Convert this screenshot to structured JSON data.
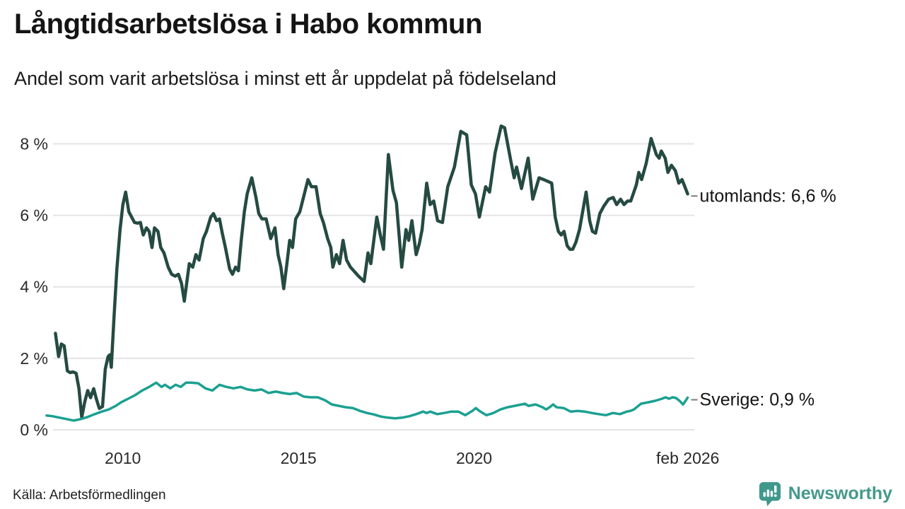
{
  "header": {
    "title": "Långtidsarbetslösa i Habo kommun",
    "subtitle": "Andel som varit arbetslösa i minst ett år uppdelat på födelseland"
  },
  "footer": {
    "source": "Källa: Arbetsförmedlingen",
    "brand": "Newsworthy"
  },
  "colors": {
    "utomlands_line": "#254a42",
    "sverige_line": "#1ba091",
    "grid": "#e4e4e8",
    "axis_text": "#2a2a2a",
    "connector": "#7a7a7a",
    "brand_teal": "#44998c"
  },
  "chart_data": {
    "type": "line",
    "title": "Långtidsarbetslösa i Habo kommun",
    "subtitle": "Andel som varit arbetslösa i minst ett år uppdelat på födelseland",
    "unit": "%",
    "grid": true,
    "legend_position": "right-end-labels",
    "xlim": [
      2007.75,
      2026.25
    ],
    "ylim": [
      0,
      8.8
    ],
    "y_ticks": [
      {
        "label": "0 %",
        "value": 0
      },
      {
        "label": "2 %",
        "value": 2
      },
      {
        "label": "4 %",
        "value": 4
      },
      {
        "label": "6 %",
        "value": 6
      },
      {
        "label": "8 %",
        "value": 8
      }
    ],
    "x_ticks": [
      {
        "label": "2010",
        "x": 2010
      },
      {
        "label": "2015",
        "x": 2015
      },
      {
        "label": "2020",
        "x": 2020
      },
      {
        "label": "feb 2026",
        "x": 2026.083
      }
    ],
    "series": [
      {
        "name": "utomlands",
        "label": "utomlands: 6,6 %",
        "last_value": 6.6,
        "color": "#254a42",
        "points": [
          [
            2008.08,
            2.7
          ],
          [
            2008.17,
            2.05
          ],
          [
            2008.25,
            2.4
          ],
          [
            2008.33,
            2.35
          ],
          [
            2008.42,
            1.65
          ],
          [
            2008.5,
            1.6
          ],
          [
            2008.58,
            1.62
          ],
          [
            2008.67,
            1.58
          ],
          [
            2008.75,
            1.15
          ],
          [
            2008.83,
            0.35
          ],
          [
            2008.92,
            0.8
          ],
          [
            2009.0,
            1.1
          ],
          [
            2009.08,
            0.9
          ],
          [
            2009.17,
            1.15
          ],
          [
            2009.25,
            0.85
          ],
          [
            2009.33,
            0.6
          ],
          [
            2009.42,
            0.65
          ],
          [
            2009.5,
            1.7
          ],
          [
            2009.58,
            2.05
          ],
          [
            2009.63,
            2.1
          ],
          [
            2009.67,
            1.75
          ],
          [
            2009.75,
            3.2
          ],
          [
            2009.83,
            4.5
          ],
          [
            2009.92,
            5.6
          ],
          [
            2010.0,
            6.3
          ],
          [
            2010.08,
            6.65
          ],
          [
            2010.17,
            6.1
          ],
          [
            2010.25,
            5.95
          ],
          [
            2010.33,
            5.8
          ],
          [
            2010.42,
            5.78
          ],
          [
            2010.5,
            5.8
          ],
          [
            2010.58,
            5.45
          ],
          [
            2010.67,
            5.65
          ],
          [
            2010.75,
            5.55
          ],
          [
            2010.83,
            5.1
          ],
          [
            2010.9,
            5.65
          ],
          [
            2011.0,
            5.55
          ],
          [
            2011.08,
            5.1
          ],
          [
            2011.17,
            4.95
          ],
          [
            2011.29,
            4.55
          ],
          [
            2011.39,
            4.35
          ],
          [
            2011.49,
            4.3
          ],
          [
            2011.58,
            4.35
          ],
          [
            2011.67,
            4.1
          ],
          [
            2011.75,
            3.6
          ],
          [
            2011.83,
            4.2
          ],
          [
            2011.89,
            4.65
          ],
          [
            2011.99,
            4.55
          ],
          [
            2012.08,
            4.9
          ],
          [
            2012.17,
            4.75
          ],
          [
            2012.29,
            5.35
          ],
          [
            2012.38,
            5.55
          ],
          [
            2012.5,
            5.95
          ],
          [
            2012.58,
            6.05
          ],
          [
            2012.67,
            5.85
          ],
          [
            2012.75,
            5.9
          ],
          [
            2012.83,
            5.5
          ],
          [
            2012.92,
            5.1
          ],
          [
            2013.04,
            4.5
          ],
          [
            2013.12,
            4.35
          ],
          [
            2013.21,
            4.55
          ],
          [
            2013.29,
            4.45
          ],
          [
            2013.37,
            5.3
          ],
          [
            2013.46,
            6.1
          ],
          [
            2013.54,
            6.6
          ],
          [
            2013.67,
            7.05
          ],
          [
            2013.79,
            6.5
          ],
          [
            2013.87,
            6.05
          ],
          [
            2013.96,
            5.9
          ],
          [
            2014.08,
            5.9
          ],
          [
            2014.21,
            5.35
          ],
          [
            2014.33,
            5.65
          ],
          [
            2014.42,
            4.9
          ],
          [
            2014.5,
            4.55
          ],
          [
            2014.58,
            3.95
          ],
          [
            2014.67,
            4.65
          ],
          [
            2014.75,
            5.3
          ],
          [
            2014.83,
            5.1
          ],
          [
            2014.92,
            5.9
          ],
          [
            2015.04,
            6.1
          ],
          [
            2015.27,
            7.0
          ],
          [
            2015.37,
            6.8
          ],
          [
            2015.5,
            6.8
          ],
          [
            2015.62,
            6.05
          ],
          [
            2015.71,
            5.8
          ],
          [
            2015.83,
            5.35
          ],
          [
            2015.92,
            5.1
          ],
          [
            2015.98,
            4.55
          ],
          [
            2016.08,
            4.9
          ],
          [
            2016.17,
            4.65
          ],
          [
            2016.27,
            5.3
          ],
          [
            2016.37,
            4.75
          ],
          [
            2016.48,
            4.55
          ],
          [
            2016.71,
            4.3
          ],
          [
            2016.87,
            4.15
          ],
          [
            2016.98,
            4.95
          ],
          [
            2017.06,
            4.65
          ],
          [
            2017.23,
            5.95
          ],
          [
            2017.33,
            5.45
          ],
          [
            2017.42,
            5.05
          ],
          [
            2017.56,
            7.7
          ],
          [
            2017.69,
            6.7
          ],
          [
            2017.79,
            6.35
          ],
          [
            2017.94,
            4.55
          ],
          [
            2018.06,
            5.6
          ],
          [
            2018.14,
            5.3
          ],
          [
            2018.23,
            5.85
          ],
          [
            2018.35,
            4.9
          ],
          [
            2018.44,
            5.2
          ],
          [
            2018.52,
            5.6
          ],
          [
            2018.65,
            6.9
          ],
          [
            2018.75,
            6.3
          ],
          [
            2018.85,
            6.4
          ],
          [
            2018.96,
            5.85
          ],
          [
            2019.1,
            5.8
          ],
          [
            2019.25,
            6.8
          ],
          [
            2019.44,
            7.35
          ],
          [
            2019.62,
            8.35
          ],
          [
            2019.79,
            8.25
          ],
          [
            2019.92,
            6.85
          ],
          [
            2020.04,
            6.6
          ],
          [
            2020.15,
            5.95
          ],
          [
            2020.33,
            6.8
          ],
          [
            2020.44,
            6.65
          ],
          [
            2020.6,
            7.75
          ],
          [
            2020.77,
            8.5
          ],
          [
            2020.87,
            8.45
          ],
          [
            2021.04,
            7.55
          ],
          [
            2021.14,
            7.05
          ],
          [
            2021.21,
            7.35
          ],
          [
            2021.35,
            6.75
          ],
          [
            2021.54,
            7.6
          ],
          [
            2021.67,
            6.45
          ],
          [
            2021.85,
            7.05
          ],
          [
            2021.98,
            7.0
          ],
          [
            2022.1,
            6.95
          ],
          [
            2022.21,
            6.9
          ],
          [
            2022.31,
            5.95
          ],
          [
            2022.4,
            5.55
          ],
          [
            2022.48,
            5.45
          ],
          [
            2022.56,
            5.55
          ],
          [
            2022.65,
            5.15
          ],
          [
            2022.73,
            5.05
          ],
          [
            2022.81,
            5.05
          ],
          [
            2022.9,
            5.25
          ],
          [
            2023.0,
            5.6
          ],
          [
            2023.19,
            6.65
          ],
          [
            2023.29,
            5.85
          ],
          [
            2023.37,
            5.55
          ],
          [
            2023.46,
            5.5
          ],
          [
            2023.58,
            6.05
          ],
          [
            2023.69,
            6.25
          ],
          [
            2023.83,
            6.45
          ],
          [
            2023.96,
            6.5
          ],
          [
            2024.06,
            6.3
          ],
          [
            2024.17,
            6.45
          ],
          [
            2024.27,
            6.3
          ],
          [
            2024.37,
            6.4
          ],
          [
            2024.46,
            6.4
          ],
          [
            2024.62,
            6.85
          ],
          [
            2024.69,
            7.2
          ],
          [
            2024.77,
            7.0
          ],
          [
            2024.9,
            7.45
          ],
          [
            2025.04,
            8.15
          ],
          [
            2025.19,
            7.7
          ],
          [
            2025.27,
            7.6
          ],
          [
            2025.33,
            7.8
          ],
          [
            2025.44,
            7.6
          ],
          [
            2025.52,
            7.2
          ],
          [
            2025.62,
            7.4
          ],
          [
            2025.73,
            7.25
          ],
          [
            2025.83,
            6.9
          ],
          [
            2025.92,
            7.0
          ],
          [
            2026.0,
            6.8
          ],
          [
            2026.08,
            6.6
          ]
        ]
      },
      {
        "name": "Sverige",
        "label": "Sverige: 0,9 %",
        "last_value": 0.9,
        "color": "#1ba091",
        "points": [
          [
            2007.83,
            0.4
          ],
          [
            2008.0,
            0.38
          ],
          [
            2008.2,
            0.34
          ],
          [
            2008.4,
            0.3
          ],
          [
            2008.6,
            0.26
          ],
          [
            2008.8,
            0.3
          ],
          [
            2009.0,
            0.36
          ],
          [
            2009.2,
            0.44
          ],
          [
            2009.4,
            0.51
          ],
          [
            2009.6,
            0.57
          ],
          [
            2009.8,
            0.67
          ],
          [
            2009.95,
            0.77
          ],
          [
            2010.15,
            0.87
          ],
          [
            2010.35,
            0.97
          ],
          [
            2010.55,
            1.1
          ],
          [
            2010.75,
            1.2
          ],
          [
            2010.95,
            1.32
          ],
          [
            2011.1,
            1.2
          ],
          [
            2011.2,
            1.26
          ],
          [
            2011.35,
            1.16
          ],
          [
            2011.5,
            1.26
          ],
          [
            2011.65,
            1.2
          ],
          [
            2011.8,
            1.32
          ],
          [
            2011.95,
            1.32
          ],
          [
            2012.15,
            1.3
          ],
          [
            2012.35,
            1.16
          ],
          [
            2012.55,
            1.1
          ],
          [
            2012.75,
            1.26
          ],
          [
            2012.95,
            1.2
          ],
          [
            2013.15,
            1.16
          ],
          [
            2013.35,
            1.2
          ],
          [
            2013.55,
            1.13
          ],
          [
            2013.75,
            1.1
          ],
          [
            2013.95,
            1.13
          ],
          [
            2014.15,
            1.03
          ],
          [
            2014.35,
            1.07
          ],
          [
            2014.55,
            1.03
          ],
          [
            2014.75,
            1.0
          ],
          [
            2014.95,
            1.03
          ],
          [
            2015.15,
            0.93
          ],
          [
            2015.35,
            0.91
          ],
          [
            2015.55,
            0.91
          ],
          [
            2015.75,
            0.83
          ],
          [
            2015.95,
            0.71
          ],
          [
            2016.15,
            0.67
          ],
          [
            2016.35,
            0.63
          ],
          [
            2016.55,
            0.61
          ],
          [
            2016.75,
            0.53
          ],
          [
            2016.95,
            0.47
          ],
          [
            2017.15,
            0.43
          ],
          [
            2017.35,
            0.37
          ],
          [
            2017.55,
            0.34
          ],
          [
            2017.75,
            0.32
          ],
          [
            2017.95,
            0.34
          ],
          [
            2018.15,
            0.38
          ],
          [
            2018.35,
            0.44
          ],
          [
            2018.55,
            0.51
          ],
          [
            2018.65,
            0.47
          ],
          [
            2018.75,
            0.51
          ],
          [
            2018.95,
            0.44
          ],
          [
            2019.15,
            0.47
          ],
          [
            2019.35,
            0.51
          ],
          [
            2019.55,
            0.51
          ],
          [
            2019.75,
            0.41
          ],
          [
            2019.95,
            0.53
          ],
          [
            2020.05,
            0.61
          ],
          [
            2020.15,
            0.53
          ],
          [
            2020.35,
            0.41
          ],
          [
            2020.45,
            0.44
          ],
          [
            2020.55,
            0.47
          ],
          [
            2020.75,
            0.57
          ],
          [
            2020.95,
            0.63
          ],
          [
            2021.15,
            0.67
          ],
          [
            2021.35,
            0.71
          ],
          [
            2021.45,
            0.73
          ],
          [
            2021.55,
            0.67
          ],
          [
            2021.75,
            0.71
          ],
          [
            2021.95,
            0.63
          ],
          [
            2022.05,
            0.57
          ],
          [
            2022.15,
            0.63
          ],
          [
            2022.25,
            0.71
          ],
          [
            2022.35,
            0.63
          ],
          [
            2022.55,
            0.61
          ],
          [
            2022.75,
            0.51
          ],
          [
            2022.95,
            0.53
          ],
          [
            2023.15,
            0.51
          ],
          [
            2023.35,
            0.47
          ],
          [
            2023.55,
            0.44
          ],
          [
            2023.75,
            0.41
          ],
          [
            2023.85,
            0.44
          ],
          [
            2023.95,
            0.47
          ],
          [
            2024.15,
            0.44
          ],
          [
            2024.35,
            0.51
          ],
          [
            2024.45,
            0.53
          ],
          [
            2024.55,
            0.57
          ],
          [
            2024.75,
            0.73
          ],
          [
            2024.95,
            0.77
          ],
          [
            2025.15,
            0.81
          ],
          [
            2025.35,
            0.87
          ],
          [
            2025.45,
            0.91
          ],
          [
            2025.55,
            0.87
          ],
          [
            2025.65,
            0.91
          ],
          [
            2025.75,
            0.89
          ],
          [
            2025.85,
            0.81
          ],
          [
            2025.95,
            0.71
          ],
          [
            2026.02,
            0.81
          ],
          [
            2026.08,
            0.9
          ]
        ]
      }
    ]
  }
}
